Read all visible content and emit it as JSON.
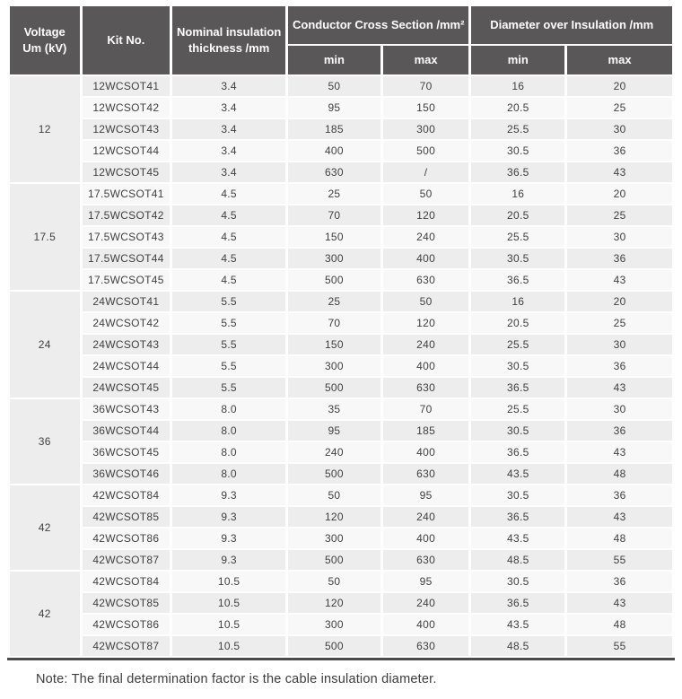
{
  "colors": {
    "header_bg": "#595757",
    "row_dark": "#ededed",
    "row_light": "#f8f8f8",
    "table_bottom_border": "#4c4a4a"
  },
  "table": {
    "header": {
      "voltage_line1": "Voltage",
      "voltage_line2": "Um (kV)",
      "kit_no": "Kit No.",
      "nominal_line1": "Nominal insulation",
      "nominal_line2": "thickness /mm",
      "conductor_group": "Conductor Cross Section /mm²",
      "diameter_group": "Diameter over Insulation /mm",
      "conductor_min": "min",
      "conductor_max": "max",
      "diameter_min": "min",
      "diameter_max": "max"
    },
    "groups": [
      {
        "voltage": "12",
        "rows": [
          {
            "kit_no": "12WCSOT41",
            "nominal_thickness": "3.4",
            "ccs_min": "50",
            "ccs_max": "70",
            "dia_min": "16",
            "dia_max": "20"
          },
          {
            "kit_no": "12WCSOT42",
            "nominal_thickness": "3.4",
            "ccs_min": "95",
            "ccs_max": "150",
            "dia_min": "20.5",
            "dia_max": "25"
          },
          {
            "kit_no": "12WCSOT43",
            "nominal_thickness": "3.4",
            "ccs_min": "185",
            "ccs_max": "300",
            "dia_min": "25.5",
            "dia_max": "30"
          },
          {
            "kit_no": "12WCSOT44",
            "nominal_thickness": "3.4",
            "ccs_min": "400",
            "ccs_max": "500",
            "dia_min": "30.5",
            "dia_max": "36"
          },
          {
            "kit_no": "12WCSOT45",
            "nominal_thickness": "3.4",
            "ccs_min": "630",
            "ccs_max": "/",
            "dia_min": "36.5",
            "dia_max": "43"
          }
        ]
      },
      {
        "voltage": "17.5",
        "rows": [
          {
            "kit_no": "17.5WCSOT41",
            "nominal_thickness": "4.5",
            "ccs_min": "25",
            "ccs_max": "50",
            "dia_min": "16",
            "dia_max": "20"
          },
          {
            "kit_no": "17.5WCSOT42",
            "nominal_thickness": "4.5",
            "ccs_min": "70",
            "ccs_max": "120",
            "dia_min": "20.5",
            "dia_max": "25"
          },
          {
            "kit_no": "17.5WCSOT43",
            "nominal_thickness": "4.5",
            "ccs_min": "150",
            "ccs_max": "240",
            "dia_min": "25.5",
            "dia_max": "30"
          },
          {
            "kit_no": "17.5WCSOT44",
            "nominal_thickness": "4.5",
            "ccs_min": "300",
            "ccs_max": "400",
            "dia_min": "30.5",
            "dia_max": "36"
          },
          {
            "kit_no": "17.5WCSOT45",
            "nominal_thickness": "4.5",
            "ccs_min": "500",
            "ccs_max": "630",
            "dia_min": "36.5",
            "dia_max": "43"
          }
        ]
      },
      {
        "voltage": "24",
        "rows": [
          {
            "kit_no": "24WCSOT41",
            "nominal_thickness": "5.5",
            "ccs_min": "25",
            "ccs_max": "50",
            "dia_min": "16",
            "dia_max": "20"
          },
          {
            "kit_no": "24WCSOT42",
            "nominal_thickness": "5.5",
            "ccs_min": "70",
            "ccs_max": "120",
            "dia_min": "20.5",
            "dia_max": "25"
          },
          {
            "kit_no": "24WCSOT43",
            "nominal_thickness": "5.5",
            "ccs_min": "150",
            "ccs_max": "240",
            "dia_min": "25.5",
            "dia_max": "30"
          },
          {
            "kit_no": "24WCSOT44",
            "nominal_thickness": "5.5",
            "ccs_min": "300",
            "ccs_max": "400",
            "dia_min": "30.5",
            "dia_max": "36"
          },
          {
            "kit_no": "24WCSOT45",
            "nominal_thickness": "5.5",
            "ccs_min": "500",
            "ccs_max": "630",
            "dia_min": "36.5",
            "dia_max": "43"
          }
        ]
      },
      {
        "voltage": "36",
        "rows": [
          {
            "kit_no": "36WCSOT43",
            "nominal_thickness": "8.0",
            "ccs_min": "35",
            "ccs_max": "70",
            "dia_min": "25.5",
            "dia_max": "30"
          },
          {
            "kit_no": "36WCSOT44",
            "nominal_thickness": "8.0",
            "ccs_min": "95",
            "ccs_max": "185",
            "dia_min": "30.5",
            "dia_max": "36"
          },
          {
            "kit_no": "36WCSOT45",
            "nominal_thickness": "8.0",
            "ccs_min": "240",
            "ccs_max": "400",
            "dia_min": "36.5",
            "dia_max": "43"
          },
          {
            "kit_no": "36WCSOT46",
            "nominal_thickness": "8.0",
            "ccs_min": "500",
            "ccs_max": "630",
            "dia_min": "43.5",
            "dia_max": "48"
          }
        ]
      },
      {
        "voltage": "42",
        "rows": [
          {
            "kit_no": "42WCSOT84",
            "nominal_thickness": "9.3",
            "ccs_min": "50",
            "ccs_max": "95",
            "dia_min": "30.5",
            "dia_max": "36"
          },
          {
            "kit_no": "42WCSOT85",
            "nominal_thickness": "9.3",
            "ccs_min": "120",
            "ccs_max": "240",
            "dia_min": "36.5",
            "dia_max": "43"
          },
          {
            "kit_no": "42WCSOT86",
            "nominal_thickness": "9.3",
            "ccs_min": "300",
            "ccs_max": "400",
            "dia_min": "43.5",
            "dia_max": "48"
          },
          {
            "kit_no": "42WCSOT87",
            "nominal_thickness": "9.3",
            "ccs_min": "500",
            "ccs_max": "630",
            "dia_min": "48.5",
            "dia_max": "55"
          }
        ]
      },
      {
        "voltage": "42",
        "rows": [
          {
            "kit_no": "42WCSOT84",
            "nominal_thickness": "10.5",
            "ccs_min": "50",
            "ccs_max": "95",
            "dia_min": "30.5",
            "dia_max": "36"
          },
          {
            "kit_no": "42WCSOT85",
            "nominal_thickness": "10.5",
            "ccs_min": "120",
            "ccs_max": "240",
            "dia_min": "36.5",
            "dia_max": "43"
          },
          {
            "kit_no": "42WCSOT86",
            "nominal_thickness": "10.5",
            "ccs_min": "300",
            "ccs_max": "400",
            "dia_min": "43.5",
            "dia_max": "48"
          },
          {
            "kit_no": "42WCSOT87",
            "nominal_thickness": "10.5",
            "ccs_min": "500",
            "ccs_max": "630",
            "dia_min": "48.5",
            "dia_max": "55"
          }
        ]
      }
    ]
  },
  "footer": {
    "note": "Note: The final determination factor is the cable insulation diameter."
  }
}
